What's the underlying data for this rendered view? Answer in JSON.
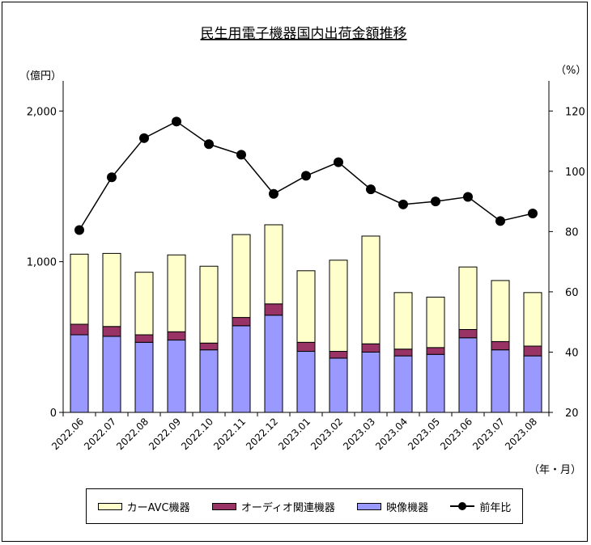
{
  "chart_data": {
    "type": "bar",
    "title": "民生用電子機器国内出荷金額推移",
    "y_left_label": "（億円）",
    "y_right_label": "（%）",
    "x_unit_label": "（年・月）",
    "ylim_left": [
      0,
      2000
    ],
    "yticks_left": [
      "0",
      "1,000",
      "2,000"
    ],
    "ylim_right": [
      20,
      120
    ],
    "yticks_right": [
      "20",
      "40",
      "60",
      "80",
      "100",
      "120"
    ],
    "categories": [
      "2022.06",
      "2022.07",
      "2022.08",
      "2022.09",
      "2022.10",
      "2022.11",
      "2022.12",
      "2023.01",
      "2023.02",
      "2023.03",
      "2023.04",
      "2023.05",
      "2023.06",
      "2023.07",
      "2023.08"
    ],
    "series": [
      {
        "name": "映像機器",
        "kind": "bar",
        "color": "#9999ff",
        "values": [
          515,
          505,
          465,
          480,
          415,
          575,
          645,
          405,
          360,
          400,
          375,
          385,
          495,
          415,
          375
        ]
      },
      {
        "name": "オーディオ関連機器",
        "kind": "bar",
        "color": "#993366",
        "values": [
          70,
          65,
          50,
          55,
          45,
          55,
          75,
          60,
          45,
          55,
          45,
          45,
          55,
          55,
          65
        ]
      },
      {
        "name": "カーAVC機器",
        "kind": "bar",
        "color": "#ffffcc",
        "values": [
          465,
          485,
          415,
          510,
          510,
          550,
          525,
          475,
          605,
          715,
          375,
          335,
          415,
          405,
          355
        ]
      },
      {
        "name": "前年比",
        "kind": "line",
        "axis": "right",
        "color": "#000000",
        "values": [
          80.5,
          98,
          111,
          116.5,
          109,
          105.5,
          92.5,
          98.5,
          103,
          94,
          89,
          90,
          91.5,
          83.5,
          86
        ]
      }
    ],
    "legend": {
      "placement": "bottom",
      "items": [
        "カーAVC機器",
        "オーディオ関連機器",
        "映像機器",
        "前年比"
      ]
    },
    "grid": false
  }
}
